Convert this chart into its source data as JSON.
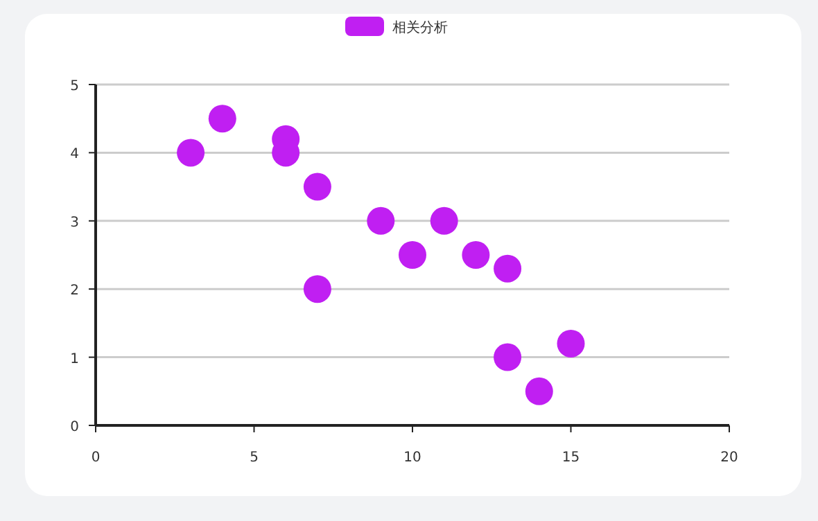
{
  "chart_data": {
    "type": "scatter",
    "legend": "top",
    "x": [
      3,
      4,
      6,
      6,
      7,
      7,
      9,
      10,
      11,
      12,
      13,
      13,
      14,
      15
    ],
    "series": [
      {
        "name": "相关分析",
        "color": "#c01ff2",
        "values": [
          4,
          4.5,
          4.2,
          4,
          3.5,
          2,
          3,
          2.5,
          3,
          2.5,
          2.3,
          1,
          0.5,
          1.2
        ]
      }
    ],
    "xlim": [
      0,
      20
    ],
    "xticks": [
      0,
      5,
      10,
      15,
      20
    ],
    "ylim": [
      0,
      5
    ],
    "yticks": [
      0,
      1,
      2,
      3,
      4,
      5
    ],
    "grid": "y",
    "marker": "circle"
  }
}
